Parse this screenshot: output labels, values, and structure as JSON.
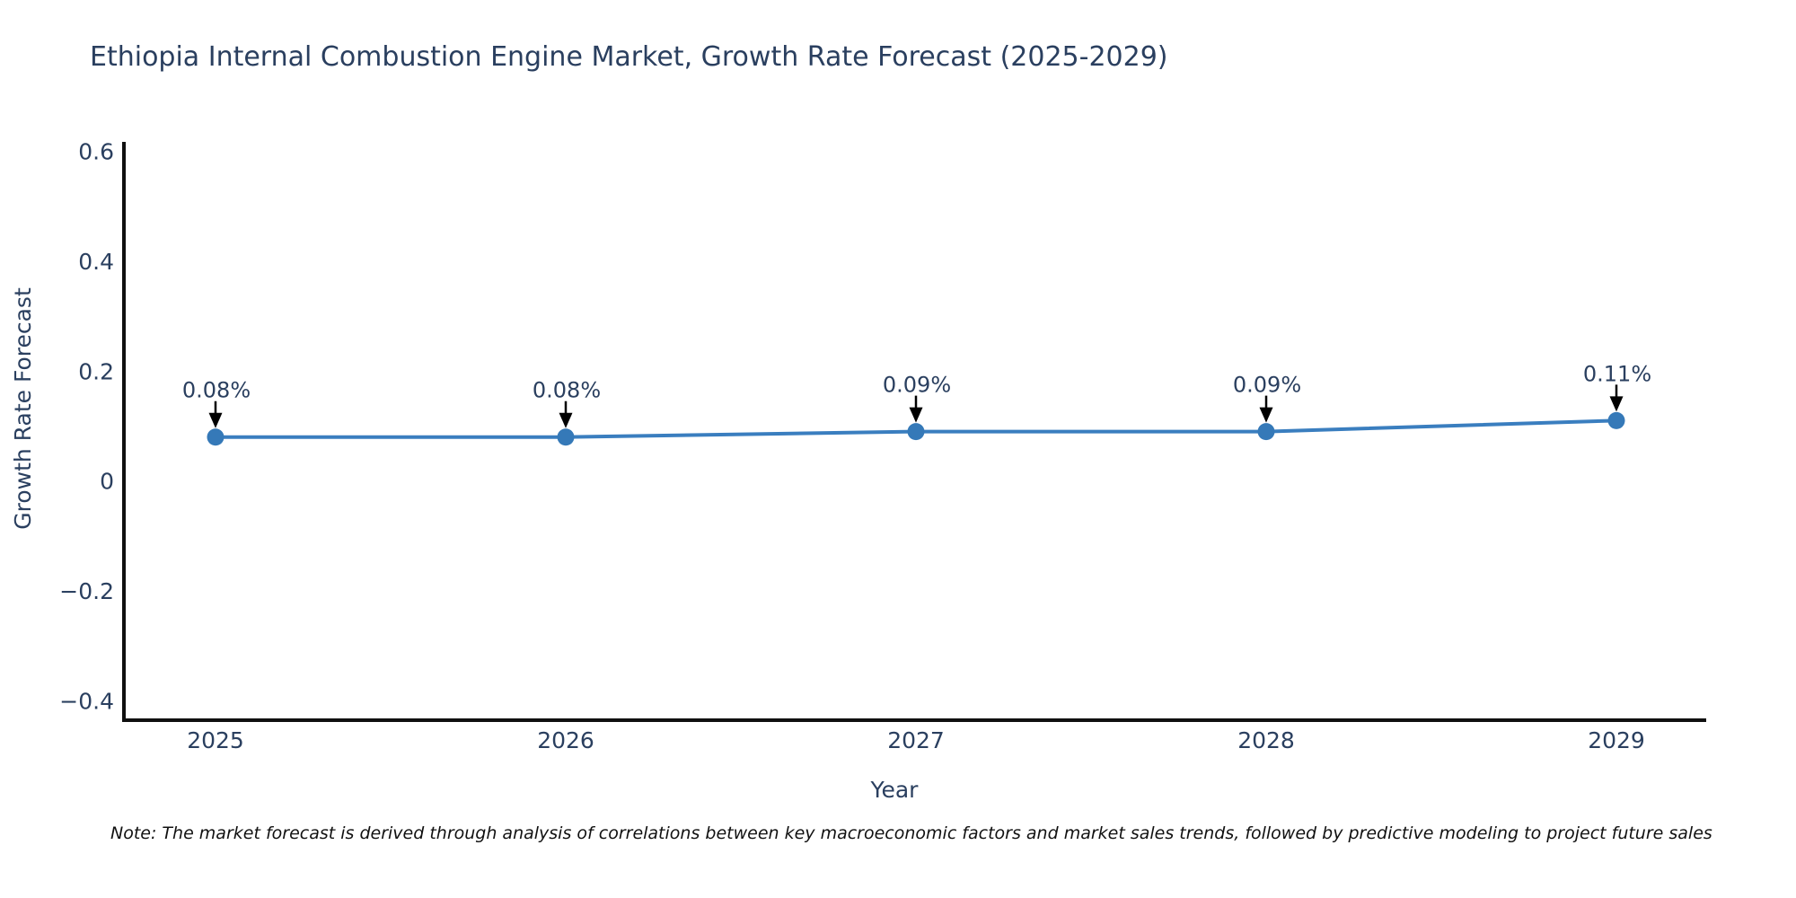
{
  "title": "Ethiopia Internal Combustion Engine Market, Growth Rate Forecast (2025-2029)",
  "note": "Note: The market forecast is derived through analysis of correlations between key macroeconomic factors and market sales trends, followed by predictive modeling to project future sales",
  "chart_data": {
    "type": "line",
    "x": [
      "2025",
      "2026",
      "2027",
      "2028",
      "2029"
    ],
    "series": [
      {
        "name": "Growth Rate Forecast",
        "values": [
          0.08,
          0.08,
          0.09,
          0.09,
          0.11
        ]
      }
    ],
    "point_labels": [
      "0.08%",
      "0.08%",
      "0.09%",
      "0.09%",
      "0.11%"
    ],
    "title": "Ethiopia Internal Combustion Engine Market, Growth Rate Forecast (2025-2029)",
    "xlabel": "Year",
    "ylabel": "Growth Rate Forecast",
    "ylim": [
      -0.435,
      0.617
    ],
    "yticks": [
      {
        "label": "0.6",
        "value": 0.6
      },
      {
        "label": "0.4",
        "value": 0.4
      },
      {
        "label": "0.2",
        "value": 0.2
      },
      {
        "label": "0",
        "value": 0.0
      },
      {
        "label": "−0.2",
        "value": -0.2
      },
      {
        "label": "−0.4",
        "value": -0.4
      }
    ],
    "grid": false,
    "legend": "none",
    "line_color": "#3a7ebf",
    "marker_color": "#3579b8",
    "text_color": "#2a3f5f",
    "axis_color": "#101010",
    "annotation_color": "#000000",
    "background_color": "#ffffff"
  }
}
